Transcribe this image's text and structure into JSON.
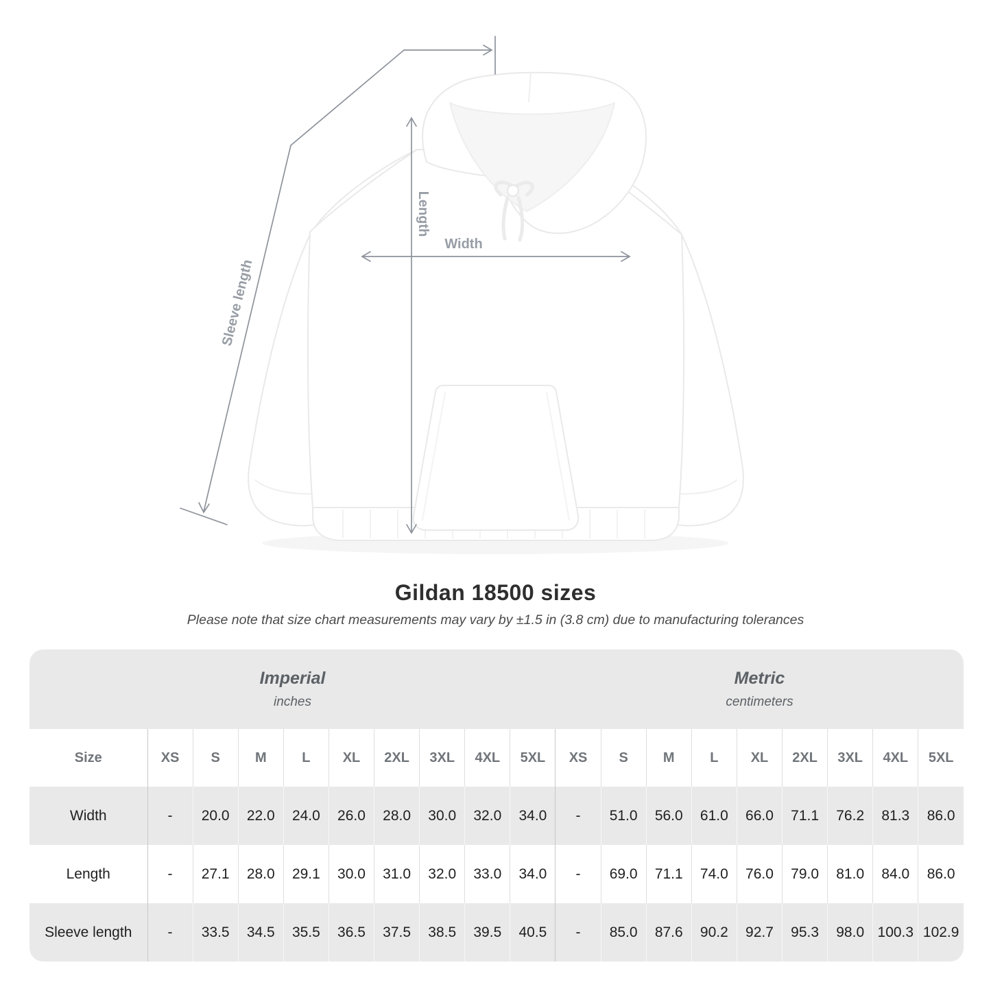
{
  "title": "Gildan 18500 sizes",
  "subtitle": "Please note that size chart measurements may vary by ±1.5 in (3.8 cm) due to manufacturing tolerances",
  "diagram": {
    "length_label": "Length",
    "width_label": "Width",
    "sleeve_label": "Sleeve length"
  },
  "table": {
    "size_label": "Size",
    "sections": [
      {
        "name": "Imperial",
        "unit": "inches"
      },
      {
        "name": "Metric",
        "unit": "centimeters"
      }
    ],
    "sizes": [
      "XS",
      "S",
      "M",
      "L",
      "XL",
      "2XL",
      "3XL",
      "4XL",
      "5XL"
    ],
    "rows": [
      {
        "label": "Width",
        "imperial": [
          "-",
          "20.0",
          "22.0",
          "24.0",
          "26.0",
          "28.0",
          "30.0",
          "32.0",
          "34.0"
        ],
        "metric": [
          "-",
          "51.0",
          "56.0",
          "61.0",
          "66.0",
          "71.1",
          "76.2",
          "81.3",
          "86.0"
        ]
      },
      {
        "label": "Length",
        "imperial": [
          "-",
          "27.1",
          "28.0",
          "29.1",
          "30.0",
          "31.0",
          "32.0",
          "33.0",
          "34.0"
        ],
        "metric": [
          "-",
          "69.0",
          "71.1",
          "74.0",
          "76.0",
          "79.0",
          "81.0",
          "84.0",
          "86.0"
        ]
      },
      {
        "label": "Sleeve length",
        "imperial": [
          "-",
          "33.5",
          "34.5",
          "35.5",
          "36.5",
          "37.5",
          "38.5",
          "39.5",
          "40.5"
        ],
        "metric": [
          "-",
          "85.0",
          "87.6",
          "90.2",
          "92.7",
          "95.3",
          "98.0",
          "100.3",
          "102.9"
        ]
      }
    ]
  },
  "colors": {
    "banner_bg": "#e9e9e9",
    "alt_row_bg": "#e9e9e9",
    "data_text": "#1f1f1f",
    "label_text": "#6b7075",
    "measure_line": "#8d939b",
    "measure_label": "#979da5"
  }
}
